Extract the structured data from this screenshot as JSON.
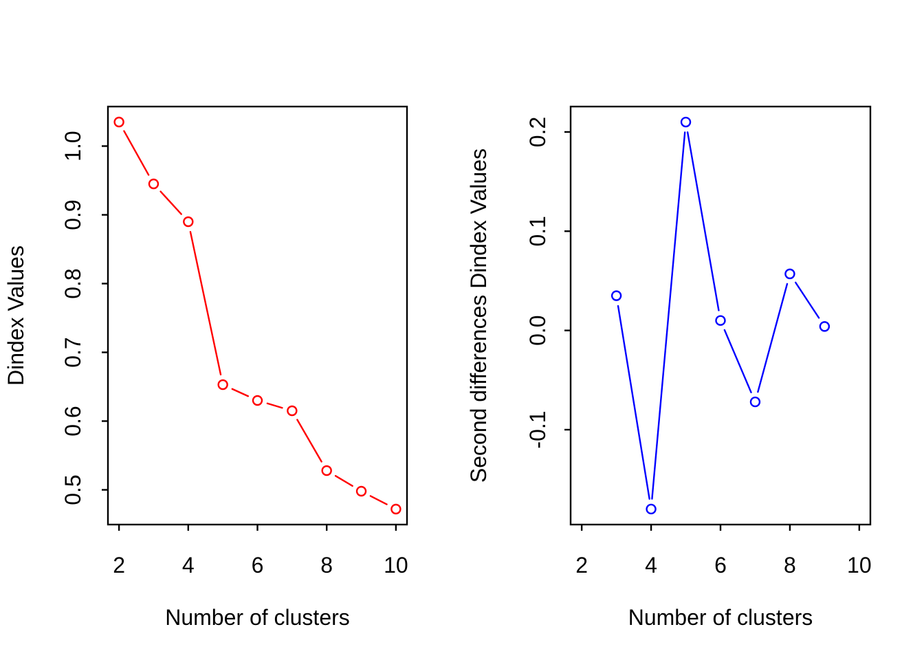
{
  "page": {
    "background_color": "#ffffff",
    "text_color": "#000000"
  },
  "chart_data": [
    {
      "id": "dindex-values",
      "type": "line",
      "title": "",
      "xlabel": "Number of clusters",
      "ylabel": "Dindex Values",
      "line_color": "#ff0000",
      "marker": "open-circle",
      "line_style": "solid-with-gaps-at-points",
      "grid": false,
      "legend_position": "none",
      "x": [
        2,
        3,
        4,
        5,
        6,
        7,
        8,
        9,
        10
      ],
      "y": [
        1.035,
        0.945,
        0.89,
        0.653,
        0.63,
        0.615,
        0.528,
        0.498,
        0.472
      ],
      "x_ticks": [
        2,
        4,
        6,
        8,
        10
      ],
      "x_tick_labels": [
        "2",
        "4",
        "6",
        "8",
        "10"
      ],
      "y_ticks": [
        0.5,
        0.6,
        0.7,
        0.8,
        0.9,
        1.0
      ],
      "y_tick_labels": [
        "0.5",
        "0.6",
        "0.7",
        "0.8",
        "0.9",
        "1.0"
      ],
      "xlim": [
        1.68,
        10.32
      ],
      "ylim": [
        0.4495,
        1.0575
      ]
    },
    {
      "id": "second-differences-dindex-values",
      "type": "line",
      "title": "",
      "xlabel": "Number of clusters",
      "ylabel": "Second differences Dindex Values",
      "line_color": "#0000ff",
      "marker": "open-circle",
      "line_style": "solid-with-gaps-at-points",
      "grid": false,
      "legend_position": "none",
      "x": [
        3,
        4,
        5,
        6,
        7,
        8,
        9
      ],
      "y": [
        0.035,
        -0.18,
        0.21,
        0.01,
        -0.072,
        0.057,
        0.004
      ],
      "x_ticks": [
        2,
        4,
        6,
        8,
        10
      ],
      "x_tick_labels": [
        "2",
        "4",
        "6",
        "8",
        "10"
      ],
      "y_ticks": [
        -0.1,
        0.0,
        0.1,
        0.2
      ],
      "y_tick_labels": [
        "-0.1",
        "0.0",
        "0.1",
        "0.2"
      ],
      "xlim": [
        1.68,
        10.32
      ],
      "ylim": [
        -0.1956,
        0.2256
      ]
    }
  ]
}
